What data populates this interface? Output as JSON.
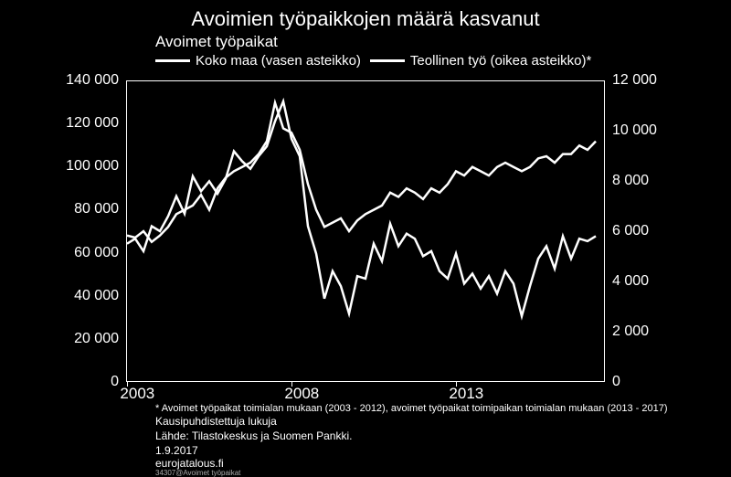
{
  "title": "Avoimien työpaikkojen määrä kasvanut",
  "subtitle": "Avoimet työpaikat",
  "legend": {
    "left": "Koko maa (vasen asteikko)",
    "right": "Teollinen työ (oikea asteikko)*"
  },
  "colors": {
    "bg": "#000000",
    "fg": "#ffffff",
    "line": "#ffffff"
  },
  "left_axis": {
    "min": 0,
    "max": 140000,
    "step": 20000,
    "labels": [
      "0",
      "20 000",
      "40 000",
      "60 000",
      "80 000",
      "100 000",
      "120 000",
      "140 000"
    ]
  },
  "right_axis": {
    "min": 0,
    "max": 12000,
    "step": 2000,
    "labels": [
      "0",
      "2 000",
      "4 000",
      "6 000",
      "8 000",
      "10 000",
      "12 000"
    ]
  },
  "x_axis": {
    "start": 2003,
    "end": 2017.5,
    "tick_years": [
      2003,
      2008,
      2013
    ],
    "labels": [
      "2003",
      "2008",
      "2013"
    ]
  },
  "series_left": {
    "name": "Koko maa",
    "axis": "left",
    "line_width": 2.5,
    "points": [
      [
        2003.0,
        68000
      ],
      [
        2003.25,
        67000
      ],
      [
        2003.5,
        70000
      ],
      [
        2003.75,
        65000
      ],
      [
        2004.0,
        68000
      ],
      [
        2004.25,
        72000
      ],
      [
        2004.5,
        78000
      ],
      [
        2004.75,
        80000
      ],
      [
        2005.0,
        82000
      ],
      [
        2005.25,
        87000
      ],
      [
        2005.5,
        80000
      ],
      [
        2005.75,
        90000
      ],
      [
        2006.0,
        95000
      ],
      [
        2006.25,
        98000
      ],
      [
        2006.5,
        100000
      ],
      [
        2006.75,
        102000
      ],
      [
        2007.0,
        106000
      ],
      [
        2007.25,
        112000
      ],
      [
        2007.5,
        130000
      ],
      [
        2007.75,
        118000
      ],
      [
        2008.0,
        116000
      ],
      [
        2008.25,
        108000
      ],
      [
        2008.5,
        92000
      ],
      [
        2008.75,
        80000
      ],
      [
        2009.0,
        72000
      ],
      [
        2009.25,
        74000
      ],
      [
        2009.5,
        76000
      ],
      [
        2009.75,
        70000
      ],
      [
        2010.0,
        75000
      ],
      [
        2010.25,
        78000
      ],
      [
        2010.5,
        80000
      ],
      [
        2010.75,
        82000
      ],
      [
        2011.0,
        88000
      ],
      [
        2011.25,
        86000
      ],
      [
        2011.5,
        90000
      ],
      [
        2011.75,
        88000
      ],
      [
        2012.0,
        85000
      ],
      [
        2012.25,
        90000
      ],
      [
        2012.5,
        88000
      ],
      [
        2012.75,
        92000
      ],
      [
        2013.0,
        98000
      ],
      [
        2013.25,
        96000
      ],
      [
        2013.5,
        100000
      ],
      [
        2013.75,
        98000
      ],
      [
        2014.0,
        96000
      ],
      [
        2014.25,
        100000
      ],
      [
        2014.5,
        102000
      ],
      [
        2014.75,
        100000
      ],
      [
        2015.0,
        98000
      ],
      [
        2015.25,
        100000
      ],
      [
        2015.5,
        104000
      ],
      [
        2015.75,
        105000
      ],
      [
        2016.0,
        102000
      ],
      [
        2016.25,
        106000
      ],
      [
        2016.5,
        106000
      ],
      [
        2016.75,
        110000
      ],
      [
        2017.0,
        108000
      ],
      [
        2017.25,
        112000
      ]
    ]
  },
  "series_right": {
    "name": "Teollinen työ",
    "axis": "right",
    "line_width": 2.5,
    "points": [
      [
        2003.0,
        5500
      ],
      [
        2003.25,
        5700
      ],
      [
        2003.5,
        5200
      ],
      [
        2003.75,
        6200
      ],
      [
        2004.0,
        6000
      ],
      [
        2004.25,
        6600
      ],
      [
        2004.5,
        7400
      ],
      [
        2004.75,
        6700
      ],
      [
        2005.0,
        8200
      ],
      [
        2005.25,
        7600
      ],
      [
        2005.5,
        8000
      ],
      [
        2005.75,
        7500
      ],
      [
        2006.0,
        8100
      ],
      [
        2006.25,
        9200
      ],
      [
        2006.5,
        8800
      ],
      [
        2006.75,
        8500
      ],
      [
        2007.0,
        9000
      ],
      [
        2007.25,
        9400
      ],
      [
        2007.5,
        10400
      ],
      [
        2007.75,
        11200
      ],
      [
        2008.0,
        9700
      ],
      [
        2008.25,
        9000
      ],
      [
        2008.5,
        6200
      ],
      [
        2008.75,
        5100
      ],
      [
        2009.0,
        3300
      ],
      [
        2009.25,
        4400
      ],
      [
        2009.5,
        3800
      ],
      [
        2009.75,
        2700
      ],
      [
        2010.0,
        4200
      ],
      [
        2010.25,
        4100
      ],
      [
        2010.5,
        5500
      ],
      [
        2010.75,
        4800
      ],
      [
        2011.0,
        6300
      ],
      [
        2011.25,
        5400
      ],
      [
        2011.5,
        5900
      ],
      [
        2011.75,
        5700
      ],
      [
        2012.0,
        5000
      ],
      [
        2012.25,
        5200
      ],
      [
        2012.5,
        4400
      ],
      [
        2012.75,
        4100
      ],
      [
        2013.0,
        5100
      ],
      [
        2013.25,
        3900
      ],
      [
        2013.5,
        4300
      ],
      [
        2013.75,
        3700
      ],
      [
        2014.0,
        4200
      ],
      [
        2014.25,
        3500
      ],
      [
        2014.5,
        4400
      ],
      [
        2014.75,
        3900
      ],
      [
        2015.0,
        2600
      ],
      [
        2015.25,
        3800
      ],
      [
        2015.5,
        4900
      ],
      [
        2015.75,
        5400
      ],
      [
        2016.0,
        4500
      ],
      [
        2016.25,
        5800
      ],
      [
        2016.5,
        4900
      ],
      [
        2016.75,
        5700
      ],
      [
        2017.0,
        5600
      ],
      [
        2017.25,
        5800
      ]
    ]
  },
  "footnote": "* Avoimet työpaikat toimialan mukaan (2003 - 2012), avoimet työpaikat toimipaikan toimialan mukaan (2013 - 2017)",
  "note2": "Kausipuhdistettuja lukuja",
  "source": "Lähde: Tilastokeskus ja Suomen Pankki.",
  "date": "1.9.2017",
  "site": "eurojatalous.fi",
  "small": "34307@Avoimet  työpaikat"
}
